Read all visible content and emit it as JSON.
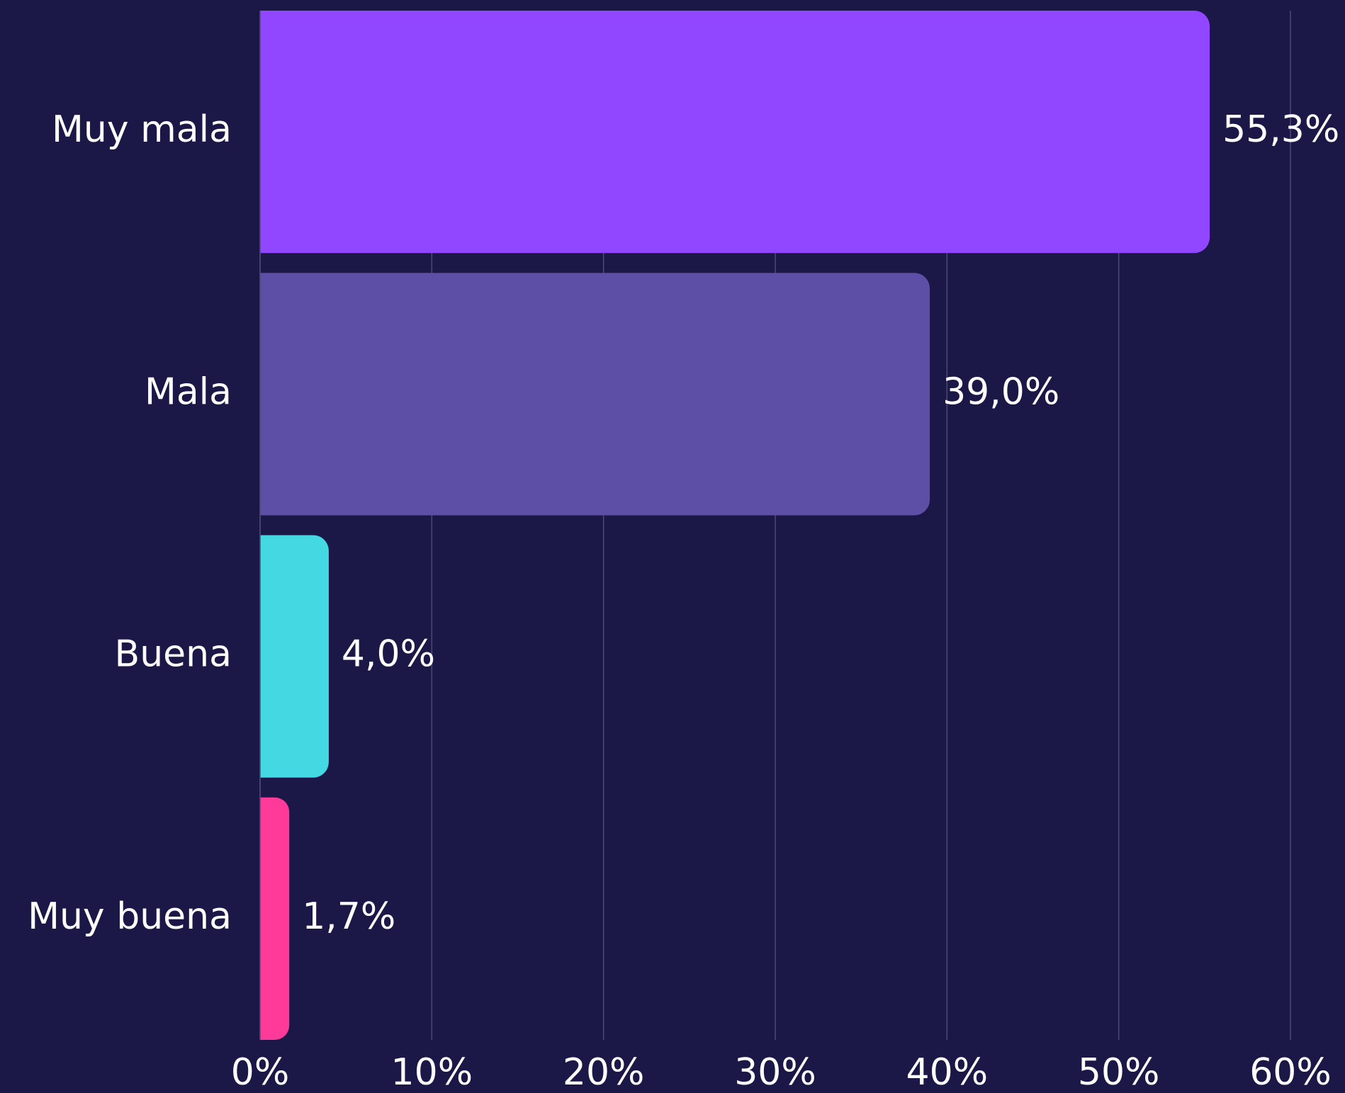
{
  "chart_data": {
    "type": "bar",
    "orientation": "horizontal",
    "categories": [
      "Muy mala",
      "Mala",
      "Buena",
      "Muy buena"
    ],
    "values": [
      55.3,
      39.0,
      4.0,
      1.7
    ],
    "value_labels": [
      "55,3%",
      "39,0%",
      "4,0%",
      "1,7%"
    ],
    "colors": [
      "#9146ff",
      "#5d4fa5",
      "#44d8e3",
      "#ff3a99"
    ],
    "xlim": [
      0,
      60
    ],
    "xticks": [
      {
        "value": 0,
        "label": "0%"
      },
      {
        "value": 10,
        "label": "10%"
      },
      {
        "value": 20,
        "label": "20%"
      },
      {
        "value": 30,
        "label": "30%"
      },
      {
        "value": 40,
        "label": "40%"
      },
      {
        "value": 50,
        "label": "50%"
      },
      {
        "value": 60,
        "label": "60%"
      }
    ],
    "grid": true
  }
}
